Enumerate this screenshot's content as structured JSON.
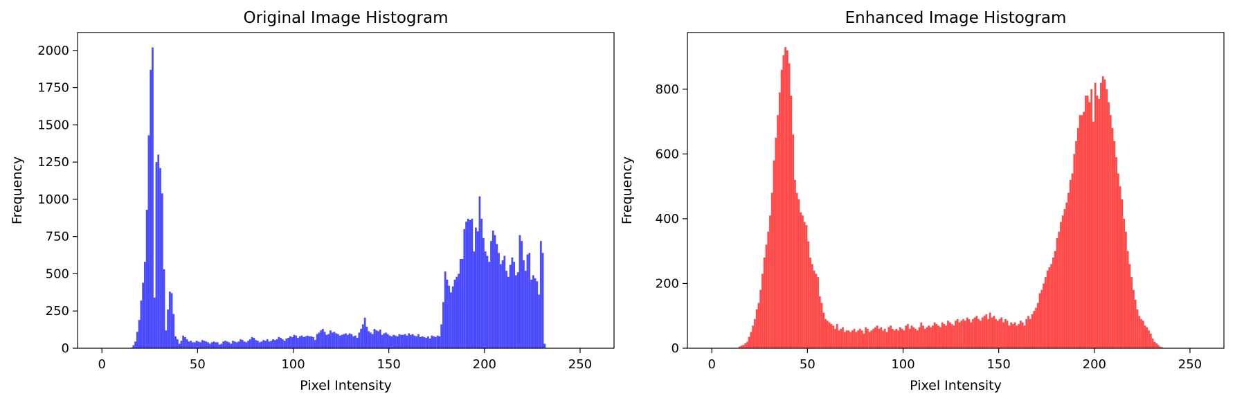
{
  "chart_data": [
    {
      "type": "bar",
      "title": "Original Image Histogram",
      "xlabel": "Pixel Intensity",
      "ylabel": "Frequency",
      "xlim": [
        -12.75,
        267.75
      ],
      "ylim": [
        0,
        2120
      ],
      "xticks": [
        0,
        50,
        100,
        150,
        200,
        250
      ],
      "yticks": [
        0,
        250,
        500,
        750,
        1000,
        1250,
        1500,
        1750,
        2000
      ],
      "grid": false,
      "color": "#4a4aff",
      "bin_start": 0,
      "bin_width": 1,
      "values": [
        0,
        0,
        0,
        0,
        0,
        0,
        0,
        0,
        0,
        0,
        0,
        0,
        0,
        0,
        0,
        5,
        20,
        45,
        110,
        190,
        320,
        440,
        580,
        930,
        1430,
        1870,
        2020,
        340,
        1250,
        1300,
        1210,
        1040,
        530,
        120,
        260,
        380,
        370,
        230,
        80,
        60,
        30,
        50,
        85,
        75,
        60,
        45,
        50,
        40,
        40,
        50,
        45,
        40,
        55,
        50,
        45,
        40,
        30,
        40,
        45,
        40,
        40,
        25,
        30,
        45,
        50,
        45,
        40,
        30,
        50,
        45,
        40,
        45,
        60,
        55,
        45,
        40,
        50,
        60,
        75,
        70,
        55,
        50,
        40,
        45,
        55,
        50,
        60,
        45,
        50,
        60,
        55,
        60,
        75,
        70,
        60,
        50,
        65,
        70,
        80,
        75,
        90,
        85,
        70,
        80,
        85,
        75,
        80,
        85,
        80,
        80,
        75,
        55,
        95,
        105,
        120,
        130,
        110,
        90,
        95,
        120,
        105,
        110,
        100,
        95,
        85,
        90,
        95,
        100,
        90,
        100,
        95,
        80,
        85,
        70,
        105,
        130,
        160,
        205,
        145,
        115,
        105,
        95,
        130,
        120,
        115,
        125,
        90,
        100,
        105,
        95,
        85,
        80,
        90,
        85,
        80,
        95,
        90,
        90,
        95,
        85,
        100,
        90,
        95,
        85,
        80,
        95,
        75,
        80,
        75,
        70,
        80,
        65,
        85,
        80,
        75,
        85,
        80,
        160,
        310,
        515,
        460,
        420,
        375,
        415,
        460,
        480,
        500,
        600,
        600,
        800,
        850,
        870,
        860,
        870,
        650,
        810,
        785,
        1020,
        870,
        740,
        650,
        620,
        580,
        720,
        790,
        760,
        700,
        640,
        565,
        590,
        620,
        520,
        480,
        560,
        610,
        580,
        490,
        510,
        760,
        720,
        590,
        520,
        630,
        640,
        460,
        490,
        470,
        450,
        360,
        720,
        640,
        30
      ]
    },
    {
      "type": "bar",
      "title": "Enhanced Image Histogram",
      "xlabel": "Pixel Intensity",
      "ylabel": "Frequency",
      "xlim": [
        -12.75,
        267.75
      ],
      "ylim": [
        0,
        975
      ],
      "xticks": [
        0,
        50,
        100,
        150,
        200,
        250
      ],
      "yticks": [
        0,
        200,
        400,
        600,
        800
      ],
      "grid": false,
      "color": "#ff4a4a",
      "bin_start": 0,
      "bin_width": 1,
      "values": [
        0,
        0,
        0,
        0,
        0,
        0,
        0,
        0,
        0,
        0,
        0,
        0,
        0,
        0,
        5,
        8,
        10,
        15,
        20,
        35,
        50,
        70,
        90,
        120,
        140,
        180,
        230,
        280,
        320,
        360,
        410,
        480,
        580,
        650,
        720,
        790,
        860,
        905,
        930,
        920,
        880,
        780,
        660,
        520,
        480,
        460,
        420,
        410,
        390,
        380,
        330,
        280,
        260,
        240,
        230,
        220,
        160,
        140,
        110,
        90,
        85,
        80,
        75,
        70,
        60,
        75,
        55,
        60,
        65,
        50,
        55,
        55,
        50,
        55,
        60,
        50,
        55,
        60,
        55,
        45,
        65,
        60,
        50,
        55,
        60,
        65,
        70,
        60,
        65,
        55,
        60,
        50,
        65,
        70,
        60,
        55,
        60,
        55,
        65,
        60,
        55,
        70,
        75,
        60,
        70,
        65,
        60,
        55,
        65,
        80,
        70,
        60,
        65,
        70,
        65,
        70,
        80,
        75,
        70,
        65,
        80,
        75,
        70,
        85,
        80,
        75,
        70,
        85,
        90,
        80,
        85,
        90,
        85,
        95,
        90,
        80,
        90,
        95,
        100,
        90,
        85,
        95,
        100,
        105,
        90,
        110,
        95,
        100,
        90,
        85,
        90,
        95,
        80,
        90,
        85,
        70,
        80,
        75,
        80,
        70,
        75,
        85,
        80,
        70,
        90,
        100,
        90,
        105,
        115,
        125,
        140,
        170,
        180,
        200,
        220,
        240,
        250,
        260,
        280,
        300,
        340,
        360,
        390,
        410,
        430,
        450,
        480,
        520,
        540,
        600,
        640,
        680,
        720,
        720,
        730,
        780,
        780,
        760,
        800,
        700,
        820,
        780,
        770,
        820,
        840,
        830,
        800,
        760,
        720,
        680,
        640,
        590,
        540,
        500,
        460,
        400,
        360,
        300,
        260,
        220,
        180,
        150,
        120,
        100,
        90,
        85,
        70,
        65,
        55,
        45,
        30,
        20,
        15,
        10,
        5,
        3,
        0,
        0,
        0,
        0,
        0
      ]
    }
  ]
}
